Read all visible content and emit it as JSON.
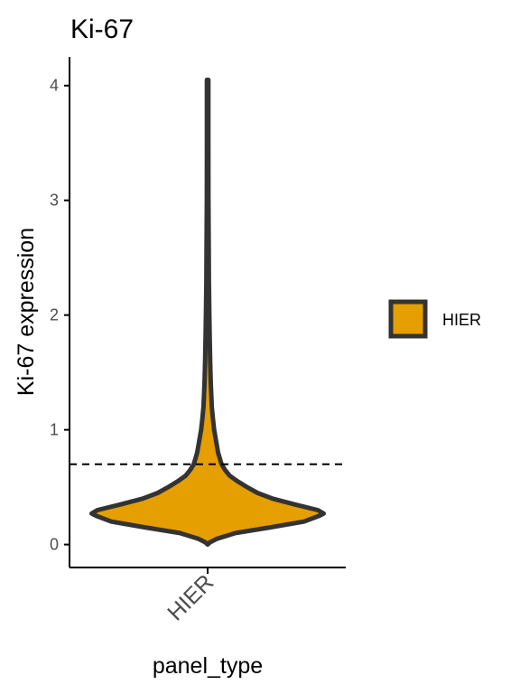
{
  "chart_data": {
    "type": "violin",
    "title": "Ki-67",
    "xlabel": "panel_type",
    "ylabel": "Ki-67 expression",
    "categories": [
      "HIER"
    ],
    "ylim": [
      -0.2,
      4.25
    ],
    "yticks": [
      0,
      1,
      2,
      3,
      4
    ],
    "ytick_labels": [
      "0",
      "1",
      "2",
      "3",
      "4"
    ],
    "threshold": 0.7,
    "threshold_style": "dashed",
    "grid": false,
    "legend_position": "right",
    "series": [
      {
        "name": "HIER",
        "category": "HIER",
        "fill_color": "#E69F00",
        "outline_color": "#333333",
        "min": 0.0,
        "max": 4.05,
        "density_profile": [
          [
            0.0,
            0.0
          ],
          [
            0.02,
            0.02
          ],
          [
            0.05,
            0.08
          ],
          [
            0.1,
            0.24
          ],
          [
            0.15,
            0.54
          ],
          [
            0.2,
            0.83
          ],
          [
            0.25,
            0.96
          ],
          [
            0.27,
            1.0
          ],
          [
            0.3,
            0.95
          ],
          [
            0.35,
            0.75
          ],
          [
            0.4,
            0.56
          ],
          [
            0.45,
            0.43
          ],
          [
            0.5,
            0.34
          ],
          [
            0.55,
            0.26
          ],
          [
            0.6,
            0.19
          ],
          [
            0.65,
            0.15
          ],
          [
            0.7,
            0.12
          ],
          [
            0.75,
            0.105
          ],
          [
            0.8,
            0.09
          ],
          [
            0.9,
            0.073
          ],
          [
            1.0,
            0.056
          ],
          [
            1.1,
            0.045
          ],
          [
            1.2,
            0.036
          ],
          [
            1.4,
            0.027
          ],
          [
            1.6,
            0.022
          ],
          [
            1.8,
            0.018
          ],
          [
            2.0,
            0.015
          ],
          [
            2.3,
            0.011
          ],
          [
            2.6,
            0.009
          ],
          [
            3.0,
            0.007
          ],
          [
            3.5,
            0.006
          ],
          [
            4.05,
            0.006
          ]
        ]
      }
    ]
  }
}
